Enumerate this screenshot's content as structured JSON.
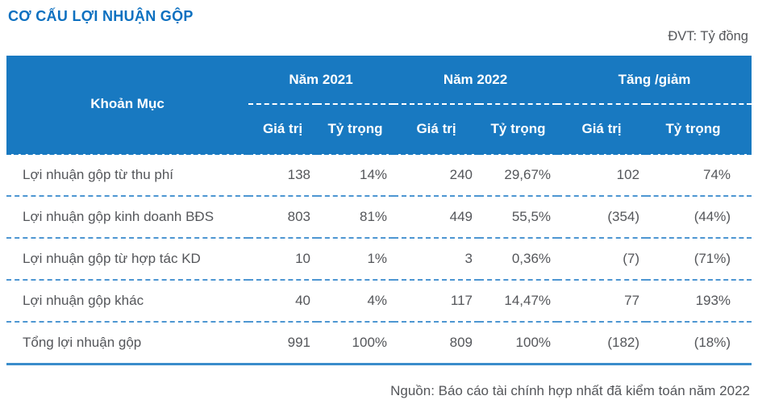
{
  "page": {
    "title": "CƠ CẤU LỢI NHUẬN GỘP",
    "unit_label": "ĐVT: Tỷ đồng",
    "source_note": "Nguồn: Báo cáo tài chính hợp nhất đã kiểm toán năm 2022"
  },
  "table": {
    "item_column_header": "Khoản Mục",
    "groups": [
      {
        "label": "Năm 2021",
        "sub": [
          "Giá trị",
          "Tỷ trọng"
        ]
      },
      {
        "label": "Năm 2022",
        "sub": [
          "Giá trị",
          "Tỷ trọng"
        ]
      },
      {
        "label": "Tăng /giảm",
        "sub": [
          "Giá trị",
          "Tỷ trọng"
        ]
      }
    ],
    "rows": [
      {
        "label": "Lợi nhuận gộp từ thu phí",
        "values": [
          "138",
          "14%",
          "240",
          "29,67%",
          "102",
          "74%"
        ]
      },
      {
        "label": "Lợi nhuận gộp kinh doanh BĐS",
        "values": [
          "803",
          "81%",
          "449",
          "55,5%",
          "(354)",
          "(44%)"
        ]
      },
      {
        "label": "Lợi nhuận gộp từ hợp tác KD",
        "values": [
          "10",
          "1%",
          "3",
          "0,36%",
          "(7)",
          "(71%)"
        ]
      },
      {
        "label": "Lợi nhuận gộp khác",
        "values": [
          "40",
          "4%",
          "117",
          "14,47%",
          "77",
          "193%"
        ]
      },
      {
        "label": "Tổng lợi nhuận gộp",
        "values": [
          "991",
          "100%",
          "809",
          "100%",
          "(182)",
          "(18%)"
        ]
      }
    ]
  },
  "colors": {
    "header_background": "#1879C1",
    "title_text": "#0C70C0",
    "body_text": "#54565A",
    "row_separator": "#4D96D2",
    "bottom_rule": "#3A8CCB"
  }
}
